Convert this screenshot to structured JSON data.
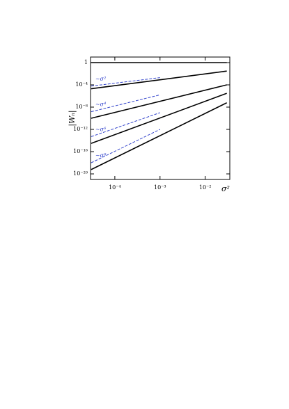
{
  "chart_data": {
    "type": "line",
    "log_x": true,
    "log_y": true,
    "x_label": "σ²",
    "y_label": "|Wₙ|",
    "xlim": [
      2.9e-05,
      0.035
    ],
    "ylim": [
      1e-21,
      10
    ],
    "xticks": [
      {
        "value": 0.0001,
        "label": "10⁻⁴"
      },
      {
        "value": 0.001,
        "label": "10⁻³"
      },
      {
        "value": 0.01,
        "label": "10⁻²"
      }
    ],
    "yticks": [
      1,
      {
        "value": 0.0001,
        "label": "10⁻⁴"
      },
      {
        "value": 1e-08,
        "label": "10⁻⁸"
      },
      {
        "value": 1e-12,
        "label": "10⁻¹²"
      },
      {
        "value": 1e-16,
        "label": "10⁻¹⁶"
      },
      {
        "value": 1e-20,
        "label": "10⁻²⁰"
      }
    ],
    "series": [
      {
        "color": "#000000",
        "style": "solid",
        "x": [
          3e-05,
          0.03
        ],
        "values": [
          1,
          1
        ]
      },
      {
        "color": "#000000",
        "style": "solid",
        "x": [
          3e-05,
          0.03
        ],
        "values": [
          2e-05,
          0.03
        ]
      },
      {
        "color": "#000000",
        "style": "solid",
        "x": [
          3e-05,
          0.03
        ],
        "values": [
          1e-10,
          0.0001
        ]
      },
      {
        "color": "#000000",
        "style": "solid",
        "x": [
          3e-05,
          0.03
        ],
        "values": [
          3e-15,
          3e-06
        ]
      },
      {
        "color": "#000000",
        "style": "solid",
        "x": [
          3e-05,
          0.03
        ],
        "values": [
          6e-20,
          6e-08
        ]
      },
      {
        "color": "#3344cc",
        "style": "dashed",
        "x": [
          3e-05,
          0.001
        ],
        "values": [
          6e-05,
          0.002
        ]
      },
      {
        "color": "#3344cc",
        "style": "dashed",
        "x": [
          3e-05,
          0.001
        ],
        "values": [
          1.5e-09,
          1.6e-06
        ]
      },
      {
        "color": "#3344cc",
        "style": "dashed",
        "x": [
          3e-05,
          0.001
        ],
        "values": [
          5e-14,
          1e-09
        ]
      },
      {
        "color": "#3344cc",
        "style": "dashed",
        "x": [
          3e-05,
          0.001
        ],
        "values": [
          1e-18,
          1e-12
        ]
      }
    ],
    "annotations": [
      "∼σ²",
      "∼σ⁴",
      "∼σ⁶",
      "∼σ⁸"
    ]
  }
}
